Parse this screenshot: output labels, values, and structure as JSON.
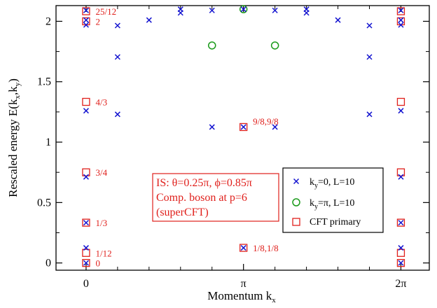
{
  "chart_data": {
    "type": "scatter",
    "xlabel": "Momentum k",
    "xlabel_sub": "x",
    "ylabel": "Rescaled energy E(k",
    "ylabel_sub1": "x",
    "ylabel_mid": ",k",
    "ylabel_sub2": "y",
    "ylabel_end": ")",
    "xlim": [
      -0.6,
      6.85
    ],
    "ylim": [
      -0.06,
      2.13
    ],
    "x_ticks": [
      {
        "value": 0,
        "label": "0"
      },
      {
        "value": 3.14159,
        "label": "π"
      },
      {
        "value": 6.28319,
        "label": "2π"
      }
    ],
    "y_ticks": [
      {
        "value": 0,
        "label": "0"
      },
      {
        "value": 0.5,
        "label": "0.5"
      },
      {
        "value": 1,
        "label": "1"
      },
      {
        "value": 1.5,
        "label": "1.5"
      },
      {
        "value": 2,
        "label": "2"
      }
    ],
    "series": [
      {
        "marker": "x",
        "color": "#1515d0",
        "points": [
          [
            0,
            0
          ],
          [
            0,
            0.125
          ],
          [
            0,
            0.3333
          ],
          [
            0,
            0.7125
          ],
          [
            0,
            1.26
          ],
          [
            0,
            1.97
          ],
          [
            0,
            2.01
          ],
          [
            0,
            2.09
          ],
          [
            0.6283,
            1.23
          ],
          [
            0.6283,
            1.705
          ],
          [
            0.6283,
            1.965
          ],
          [
            1.2566,
            2.01
          ],
          [
            1.885,
            2.07
          ],
          [
            1.885,
            2.1
          ],
          [
            2.5133,
            1.125
          ],
          [
            2.5133,
            2.09
          ],
          [
            3.14159,
            0.125
          ],
          [
            3.14159,
            1.125
          ],
          [
            3.14159,
            2.1
          ],
          [
            3.7699,
            1.125
          ],
          [
            3.7699,
            2.09
          ],
          [
            4.3982,
            2.07
          ],
          [
            4.3982,
            2.1
          ],
          [
            5.0265,
            2.01
          ],
          [
            5.6549,
            1.23
          ],
          [
            5.6549,
            1.705
          ],
          [
            5.6549,
            1.965
          ],
          [
            6.28319,
            0
          ],
          [
            6.28319,
            0.125
          ],
          [
            6.28319,
            0.3333
          ],
          [
            6.28319,
            0.7125
          ],
          [
            6.28319,
            1.26
          ],
          [
            6.28319,
            1.97
          ],
          [
            6.28319,
            2.01
          ],
          [
            6.28319,
            2.09
          ]
        ]
      },
      {
        "marker": "circle",
        "color": "#1a9a1a",
        "points": [
          [
            2.5133,
            1.8
          ],
          [
            3.14159,
            2.1
          ],
          [
            3.7699,
            1.8
          ]
        ]
      },
      {
        "marker": "square",
        "color": "#e0201c",
        "points": [
          [
            0,
            0
          ],
          [
            0,
            0.0833
          ],
          [
            0,
            0.3333
          ],
          [
            0,
            0.75
          ],
          [
            0,
            1.3333
          ],
          [
            0,
            2.0
          ],
          [
            0,
            2.0833
          ],
          [
            3.14159,
            0.125
          ],
          [
            3.14159,
            1.125
          ],
          [
            6.28319,
            0
          ],
          [
            6.28319,
            0.0833
          ],
          [
            6.28319,
            0.3333
          ],
          [
            6.28319,
            0.75
          ],
          [
            6.28319,
            1.3333
          ],
          [
            6.28319,
            2.0
          ],
          [
            6.28319,
            2.0833
          ]
        ]
      }
    ],
    "annotations": [
      {
        "text": "0",
        "x": 0.19,
        "y": 0
      },
      {
        "text": "1/12",
        "x": 0.19,
        "y": 0.0833
      },
      {
        "text": "1/3",
        "x": 0.19,
        "y": 0.3333
      },
      {
        "text": "3/4",
        "x": 0.19,
        "y": 0.75
      },
      {
        "text": "4/3",
        "x": 0.19,
        "y": 1.3333
      },
      {
        "text": "2",
        "x": 0.19,
        "y": 2.0
      },
      {
        "text": "25/12",
        "x": 0.19,
        "y": 2.0833
      },
      {
        "text": "1/8,1/8",
        "x": 3.33,
        "y": 0.125
      },
      {
        "text": "9/8,9/8",
        "x": 3.33,
        "y": 1.175
      }
    ],
    "info_box": {
      "lines": [
        "IS: θ=0.25π, ϕ=0.85π",
        "Comp. boson at p=6",
        "(superCFT)"
      ]
    },
    "legend": {
      "placement": "lower-right",
      "entries": [
        {
          "marker": "x",
          "label_pre": "k",
          "label_sub": "y",
          "label_post": "=0, L=10"
        },
        {
          "marker": "circle",
          "label_pre": "k",
          "label_sub": "y",
          "label_post": "=π, L=10"
        },
        {
          "marker": "square",
          "label_pre": "",
          "label_sub": "",
          "label_post": "CFT primary"
        }
      ]
    },
    "grid": false
  }
}
